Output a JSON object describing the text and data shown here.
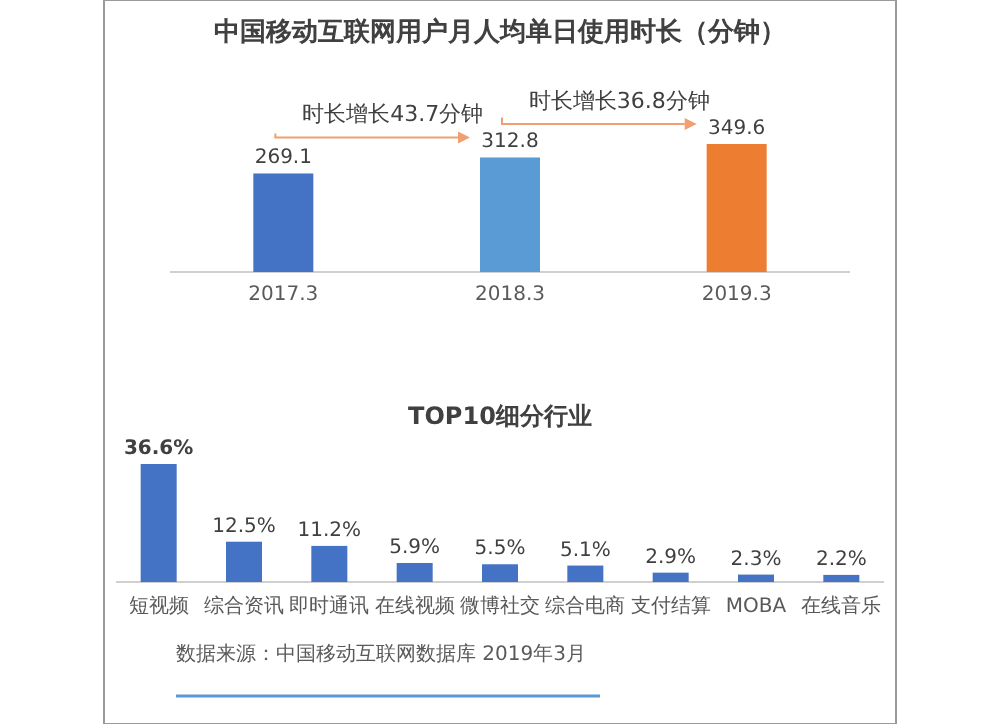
{
  "chart_data": [
    {
      "type": "bar",
      "title": "中国移动互联网用户月人均单日使用时长（分钟）",
      "categories": [
        "2017.3",
        "2018.3",
        "2019.3"
      ],
      "values": [
        269.1,
        312.8,
        349.6
      ],
      "colors": [
        "#4472c4",
        "#5b9bd5",
        "#ed7d31"
      ],
      "data_labels": true,
      "annotations": [
        {
          "text": "时长增长43.7分钟",
          "x": "2018.3",
          "y": 312.8
        },
        {
          "text": "时长增长36.8分钟",
          "x": "2019.3",
          "y": 349.6
        }
      ]
    },
    {
      "type": "bar",
      "title": "TOP10细分行业",
      "categories": [
        "短视频",
        "综合资讯",
        "即时通讯",
        "在线视频",
        "微博社交",
        "综合电商",
        "支付结算",
        "MOBA",
        "在线音乐"
      ],
      "values": [
        36.6,
        12.5,
        11.2,
        5.9,
        5.5,
        5.1,
        2.9,
        2.3,
        2.2
      ],
      "color": "#4472c4",
      "value_labels": [
        "36.6%",
        "12.5%",
        "11.2%",
        "5.9%",
        "5.5%",
        "5.1%",
        "2.9%",
        "2.3%",
        "2.2%"
      ],
      "annotations": [
        "数据来源：中国移动互联网数据库 2019年3月"
      ]
    }
  ]
}
